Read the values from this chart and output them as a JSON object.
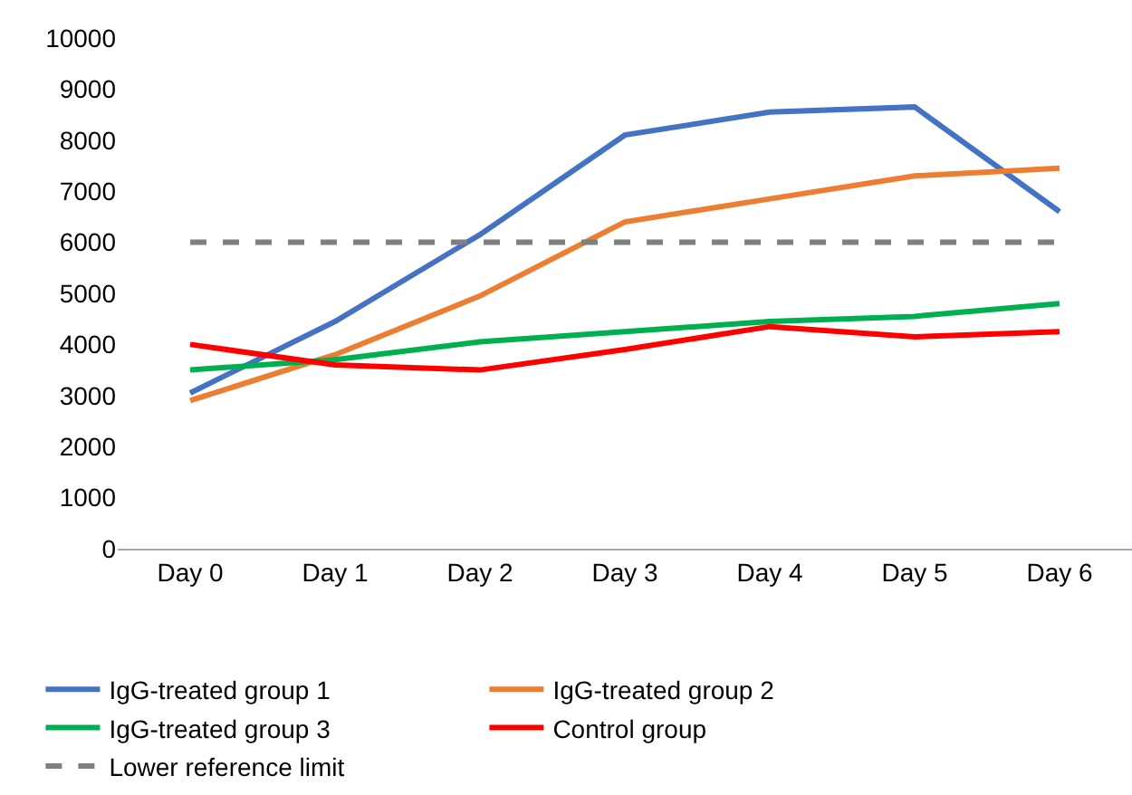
{
  "chart_data": {
    "type": "line",
    "categories": [
      "Day 0",
      "Day 1",
      "Day 2",
      "Day 3",
      "Day 4",
      "Day 5",
      "Day 6"
    ],
    "series": [
      {
        "name": "IgG-treated group 1",
        "color": "#4472c4",
        "values": [
          3050,
          4450,
          6150,
          8100,
          8550,
          8650,
          6600
        ]
      },
      {
        "name": "IgG-treated group 2",
        "color": "#ed7d31",
        "values": [
          2900,
          3800,
          4950,
          6400,
          6850,
          7300,
          7450
        ]
      },
      {
        "name": "IgG-treated group 3",
        "color": "#00b050",
        "values": [
          3500,
          3700,
          4050,
          4250,
          4450,
          4550,
          4800
        ]
      },
      {
        "name": "Control group",
        "color": "#ff0000",
        "values": [
          4000,
          3600,
          3500,
          3900,
          4350,
          4150,
          4250
        ]
      },
      {
        "name": "Lower reference limit",
        "color": "#7f7f7f",
        "line_style": "dashed",
        "values": [
          6000,
          6000,
          6000,
          6000,
          6000,
          6000,
          6000
        ]
      }
    ],
    "ylim": [
      0,
      10000
    ],
    "yticks": [
      0,
      1000,
      2000,
      3000,
      4000,
      5000,
      6000,
      7000,
      8000,
      9000,
      10000
    ],
    "grid": false,
    "legend": "bottom",
    "marker": "none",
    "line_style": "solid"
  }
}
